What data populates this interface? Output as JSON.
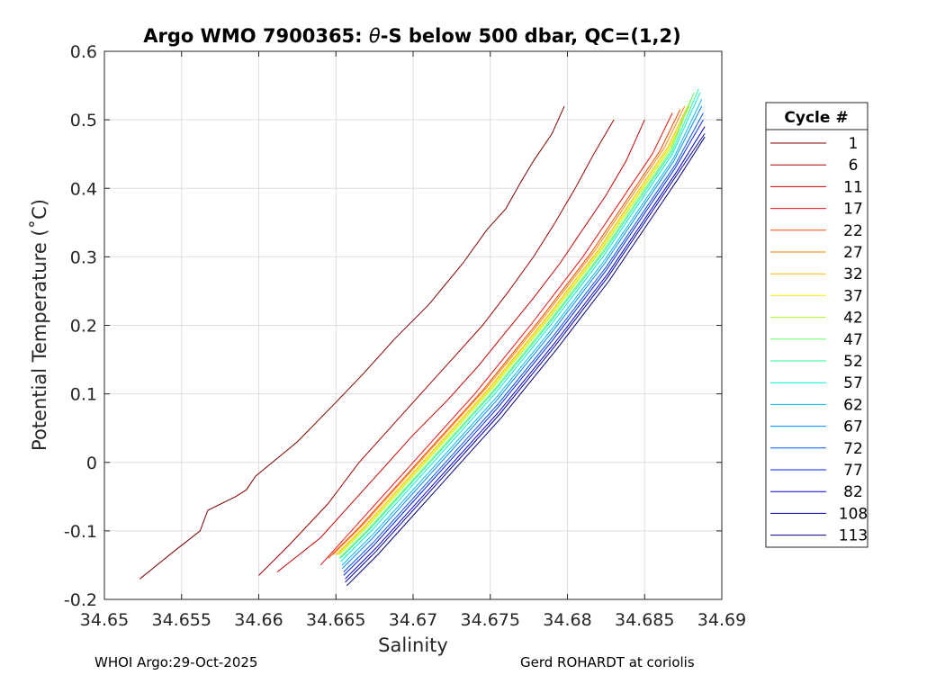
{
  "chart_data": {
    "type": "line",
    "title_prefix": "Argo WMO 7900365: ",
    "title_theta": "θ",
    "title_suffix": "-S below 500 dbar,  QC=(1,2)",
    "xlabel": "Salinity",
    "ylabel": "Potential Temperature (˚C)",
    "xlim": [
      34.65,
      34.69
    ],
    "ylim": [
      -0.2,
      0.6
    ],
    "grid": true,
    "xticks": [
      34.65,
      34.655,
      34.66,
      34.665,
      34.67,
      34.675,
      34.68,
      34.685,
      34.69
    ],
    "xtick_labels": [
      "34.65",
      "34.655",
      "34.66",
      "34.665",
      "34.67",
      "34.675",
      "34.68",
      "34.685",
      "34.69"
    ],
    "yticks": [
      -0.2,
      -0.1,
      0,
      0.1,
      0.2,
      0.3,
      0.4,
      0.5,
      0.6
    ],
    "ytick_labels": [
      "-0.2",
      "-0.1",
      "0",
      "0.1",
      "0.2",
      "0.3",
      "0.4",
      "0.5",
      "0.6"
    ],
    "legend_title": "Cycle #",
    "legend_position": "right-outside",
    "legend": [
      {
        "label": "1",
        "color": "#800000"
      },
      {
        "label": "6",
        "color": "#a00000"
      },
      {
        "label": "11",
        "color": "#c80000"
      },
      {
        "label": "17",
        "color": "#f01010"
      },
      {
        "label": "22",
        "color": "#ff4400"
      },
      {
        "label": "27",
        "color": "#ff8800"
      },
      {
        "label": "32",
        "color": "#ffbb00"
      },
      {
        "label": "37",
        "color": "#ffee00"
      },
      {
        "label": "42",
        "color": "#aaff22"
      },
      {
        "label": "47",
        "color": "#66ff66"
      },
      {
        "label": "52",
        "color": "#22ff99"
      },
      {
        "label": "57",
        "color": "#00eedd"
      },
      {
        "label": "62",
        "color": "#00bbff"
      },
      {
        "label": "67",
        "color": "#0088ff"
      },
      {
        "label": "72",
        "color": "#0055ff"
      },
      {
        "label": "77",
        "color": "#0022ff"
      },
      {
        "label": "82",
        "color": "#0000dd"
      },
      {
        "label": "108",
        "color": "#0000aa"
      },
      {
        "label": "113",
        "color": "#000080"
      }
    ],
    "series": [
      {
        "cycle": "1",
        "color": "#800000",
        "salinity": [
          34.6523,
          34.6545,
          34.6562,
          34.6567,
          34.6585,
          34.6592,
          34.6598,
          34.6625,
          34.6651,
          34.6668,
          34.6688,
          34.671,
          34.6732,
          34.6748,
          34.676,
          34.677,
          34.6778,
          34.679,
          34.6798
        ],
        "theta": [
          -0.17,
          -0.13,
          -0.1,
          -0.07,
          -0.05,
          -0.04,
          -0.02,
          0.03,
          0.09,
          0.13,
          0.18,
          0.23,
          0.29,
          0.34,
          0.37,
          0.41,
          0.44,
          0.48,
          0.52
        ]
      },
      {
        "cycle": "6",
        "color": "#a00000",
        "salinity": [
          34.66,
          34.662,
          34.6645,
          34.6665,
          34.6685,
          34.6705,
          34.6725,
          34.6745,
          34.6762,
          34.6778,
          34.6792,
          34.6805,
          34.6817,
          34.683
        ],
        "theta": [
          -0.165,
          -0.12,
          -0.06,
          0.0,
          0.05,
          0.1,
          0.15,
          0.2,
          0.25,
          0.3,
          0.35,
          0.4,
          0.45,
          0.5
        ]
      },
      {
        "cycle": "11",
        "color": "#c80000",
        "salinity": [
          34.6612,
          34.664,
          34.666,
          34.668,
          34.67,
          34.6722,
          34.6742,
          34.676,
          34.6778,
          34.6795,
          34.681,
          34.6825,
          34.6838,
          34.685
        ],
        "theta": [
          -0.16,
          -0.11,
          -0.06,
          -0.01,
          0.04,
          0.09,
          0.14,
          0.19,
          0.24,
          0.29,
          0.34,
          0.39,
          0.44,
          0.5
        ]
      },
      {
        "cycle": "17",
        "color": "#f01010",
        "salinity": [
          34.664,
          34.666,
          34.668,
          34.67,
          34.672,
          34.674,
          34.6758,
          34.6776,
          34.6793,
          34.681,
          34.6825,
          34.684,
          34.6855,
          34.6868
        ],
        "theta": [
          -0.15,
          -0.1,
          -0.05,
          0.0,
          0.05,
          0.1,
          0.15,
          0.2,
          0.25,
          0.3,
          0.35,
          0.4,
          0.45,
          0.51
        ]
      },
      {
        "cycle": "22",
        "color": "#ff4400",
        "salinity": [
          34.6645,
          34.6665,
          34.6685,
          34.6705,
          34.6725,
          34.6745,
          34.6763,
          34.6781,
          34.6798,
          34.6815,
          34.683,
          34.6845,
          34.686,
          34.6873
        ],
        "theta": [
          -0.14,
          -0.095,
          -0.045,
          0.005,
          0.055,
          0.105,
          0.155,
          0.205,
          0.255,
          0.305,
          0.355,
          0.405,
          0.455,
          0.515
        ]
      },
      {
        "cycle": "27",
        "color": "#ff8800",
        "salinity": [
          34.6648,
          34.6668,
          34.6688,
          34.6708,
          34.6728,
          34.6748,
          34.6766,
          34.6784,
          34.6801,
          34.6818,
          34.6833,
          34.6848,
          34.6863,
          34.6876
        ],
        "theta": [
          -0.135,
          -0.09,
          -0.04,
          0.01,
          0.06,
          0.11,
          0.16,
          0.21,
          0.26,
          0.31,
          0.36,
          0.41,
          0.46,
          0.52
        ]
      },
      {
        "cycle": "32",
        "color": "#ffbb00",
        "salinity": [
          34.665,
          34.667,
          34.669,
          34.671,
          34.673,
          34.675,
          34.6768,
          34.6786,
          34.6803,
          34.682,
          34.6835,
          34.685,
          34.6865,
          34.6878
        ],
        "theta": [
          -0.135,
          -0.09,
          -0.04,
          0.01,
          0.06,
          0.11,
          0.16,
          0.21,
          0.26,
          0.31,
          0.36,
          0.41,
          0.46,
          0.52
        ]
      },
      {
        "cycle": "37",
        "color": "#ffee00",
        "salinity": [
          34.6651,
          34.6671,
          34.6691,
          34.6711,
          34.6731,
          34.6751,
          34.6769,
          34.6787,
          34.6804,
          34.6821,
          34.6836,
          34.6851,
          34.6866,
          34.6879
        ],
        "theta": [
          -0.135,
          -0.09,
          -0.04,
          0.01,
          0.06,
          0.11,
          0.16,
          0.21,
          0.26,
          0.31,
          0.36,
          0.41,
          0.46,
          0.52
        ]
      },
      {
        "cycle": "42",
        "color": "#aaff22",
        "salinity": [
          34.6652,
          34.6672,
          34.6692,
          34.6712,
          34.6732,
          34.6752,
          34.677,
          34.6788,
          34.6805,
          34.6822,
          34.6837,
          34.6852,
          34.6867,
          34.688
        ],
        "theta": [
          -0.135,
          -0.09,
          -0.04,
          0.01,
          0.06,
          0.11,
          0.16,
          0.21,
          0.26,
          0.31,
          0.36,
          0.41,
          0.46,
          0.53
        ]
      },
      {
        "cycle": "47",
        "color": "#66ff66",
        "salinity": [
          34.6652,
          34.6672,
          34.6692,
          34.6712,
          34.6732,
          34.6752,
          34.677,
          34.6788,
          34.6805,
          34.6822,
          34.6837,
          34.6852,
          34.6867,
          34.6882
        ],
        "theta": [
          -0.14,
          -0.095,
          -0.045,
          0.005,
          0.055,
          0.105,
          0.155,
          0.205,
          0.255,
          0.305,
          0.355,
          0.405,
          0.455,
          0.54
        ]
      },
      {
        "cycle": "52",
        "color": "#22ff99",
        "salinity": [
          34.6653,
          34.6673,
          34.6693,
          34.6713,
          34.6733,
          34.6753,
          34.6771,
          34.6789,
          34.6806,
          34.6823,
          34.6838,
          34.6853,
          34.6868,
          34.6885
        ],
        "theta": [
          -0.14,
          -0.095,
          -0.045,
          0.005,
          0.055,
          0.105,
          0.155,
          0.205,
          0.255,
          0.305,
          0.355,
          0.405,
          0.455,
          0.545
        ]
      },
      {
        "cycle": "57",
        "color": "#00eedd",
        "salinity": [
          34.6653,
          34.6673,
          34.6693,
          34.6713,
          34.6733,
          34.6753,
          34.6771,
          34.6789,
          34.6806,
          34.6823,
          34.6838,
          34.6853,
          34.6868,
          34.6886
        ],
        "theta": [
          -0.145,
          -0.1,
          -0.05,
          0.0,
          0.05,
          0.1,
          0.15,
          0.2,
          0.25,
          0.3,
          0.35,
          0.4,
          0.45,
          0.54
        ]
      },
      {
        "cycle": "62",
        "color": "#00bbff",
        "salinity": [
          34.6654,
          34.6674,
          34.6694,
          34.6714,
          34.6734,
          34.6754,
          34.6772,
          34.679,
          34.6807,
          34.6824,
          34.6839,
          34.6854,
          34.6869,
          34.6887
        ],
        "theta": [
          -0.15,
          -0.105,
          -0.055,
          -0.005,
          0.045,
          0.095,
          0.145,
          0.195,
          0.245,
          0.295,
          0.345,
          0.395,
          0.445,
          0.53
        ]
      },
      {
        "cycle": "67",
        "color": "#0088ff",
        "salinity": [
          34.6654,
          34.6674,
          34.6694,
          34.6714,
          34.6734,
          34.6754,
          34.6772,
          34.679,
          34.6807,
          34.6824,
          34.6839,
          34.6854,
          34.6869,
          34.6887
        ],
        "theta": [
          -0.155,
          -0.11,
          -0.06,
          -0.01,
          0.04,
          0.09,
          0.14,
          0.19,
          0.24,
          0.29,
          0.34,
          0.39,
          0.44,
          0.52
        ]
      },
      {
        "cycle": "72",
        "color": "#0055ff",
        "salinity": [
          34.6655,
          34.6675,
          34.6695,
          34.6715,
          34.6735,
          34.6755,
          34.6773,
          34.6791,
          34.6808,
          34.6825,
          34.684,
          34.6855,
          34.687,
          34.6888
        ],
        "theta": [
          -0.16,
          -0.115,
          -0.065,
          -0.015,
          0.035,
          0.085,
          0.135,
          0.185,
          0.235,
          0.285,
          0.335,
          0.385,
          0.435,
          0.51
        ]
      },
      {
        "cycle": "77",
        "color": "#0022ff",
        "salinity": [
          34.6655,
          34.6675,
          34.6695,
          34.6715,
          34.6735,
          34.6755,
          34.6773,
          34.6791,
          34.6808,
          34.6825,
          34.684,
          34.6855,
          34.687,
          34.6888
        ],
        "theta": [
          -0.165,
          -0.12,
          -0.07,
          -0.02,
          0.03,
          0.08,
          0.13,
          0.18,
          0.23,
          0.28,
          0.33,
          0.38,
          0.43,
          0.5
        ]
      },
      {
        "cycle": "82",
        "color": "#0000dd",
        "salinity": [
          34.6656,
          34.6676,
          34.6696,
          34.6716,
          34.6736,
          34.6756,
          34.6774,
          34.6792,
          34.6809,
          34.6826,
          34.6841,
          34.6856,
          34.6871,
          34.6889
        ],
        "theta": [
          -0.17,
          -0.125,
          -0.075,
          -0.025,
          0.025,
          0.075,
          0.125,
          0.175,
          0.225,
          0.275,
          0.325,
          0.375,
          0.425,
          0.49
        ]
      },
      {
        "cycle": "108",
        "color": "#0000aa",
        "salinity": [
          34.6656,
          34.6676,
          34.6696,
          34.6716,
          34.6736,
          34.6756,
          34.6774,
          34.6792,
          34.6809,
          34.6826,
          34.6841,
          34.6856,
          34.6871,
          34.6889
        ],
        "theta": [
          -0.175,
          -0.13,
          -0.08,
          -0.03,
          0.02,
          0.07,
          0.12,
          0.17,
          0.22,
          0.27,
          0.32,
          0.37,
          0.42,
          0.48
        ]
      },
      {
        "cycle": "113",
        "color": "#000080",
        "salinity": [
          34.6657,
          34.6677,
          34.6697,
          34.6717,
          34.6737,
          34.6757,
          34.6775,
          34.6793,
          34.681,
          34.6827,
          34.6842,
          34.6857,
          34.6872,
          34.6889
        ],
        "theta": [
          -0.18,
          -0.135,
          -0.085,
          -0.035,
          0.015,
          0.065,
          0.115,
          0.165,
          0.215,
          0.265,
          0.315,
          0.365,
          0.415,
          0.475
        ]
      }
    ]
  },
  "footer": {
    "left": "WHOI Argo:29-Oct-2025",
    "right": "Gerd ROHARDT at coriolis"
  }
}
